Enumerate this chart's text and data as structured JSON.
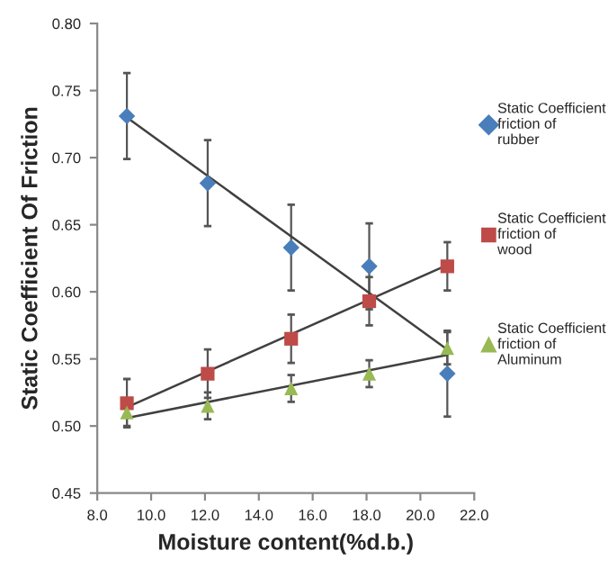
{
  "chart_data": {
    "type": "scatter",
    "xlabel": "Moisture content(%d.b.)",
    "ylabel": "Static Coefficient Of Friction",
    "xlim": [
      8.0,
      22.0
    ],
    "ylim": [
      0.45,
      0.8
    ],
    "xticks": [
      {
        "value": 8,
        "label": "8.0"
      },
      {
        "value": 10,
        "label": "10.0"
      },
      {
        "value": 12,
        "label": "12.0"
      },
      {
        "value": 14,
        "label": "14.0"
      },
      {
        "value": 16,
        "label": "16.0"
      },
      {
        "value": 18,
        "label": "18.0"
      },
      {
        "value": 20,
        "label": "20.0"
      },
      {
        "value": 22,
        "label": "22.0"
      }
    ],
    "yticks": [
      {
        "value": 0.45,
        "label": "0.45"
      },
      {
        "value": 0.5,
        "label": "0.50"
      },
      {
        "value": 0.55,
        "label": "0.55"
      },
      {
        "value": 0.6,
        "label": "0.60"
      },
      {
        "value": 0.65,
        "label": "0.65"
      },
      {
        "value": 0.7,
        "label": "0.70"
      },
      {
        "value": 0.75,
        "label": "0.75"
      },
      {
        "value": 0.8,
        "label": "0.80"
      }
    ],
    "grid": false,
    "legend": "right",
    "series": [
      {
        "type": "line",
        "color": "#404040",
        "marker": "none",
        "x": [
          9.1,
          21.0
        ],
        "values": [
          0.73,
          0.557
        ]
      },
      {
        "type": "line",
        "color": "#404040",
        "marker": "none",
        "x": [
          9.1,
          21.0
        ],
        "values": [
          0.514,
          0.62
        ]
      },
      {
        "type": "line",
        "color": "#404040",
        "marker": "none",
        "x": [
          9.1,
          21.0
        ],
        "values": [
          0.506,
          0.553
        ]
      },
      {
        "name": "Static Coefficient\nfriction of\nrubber",
        "color": "#4a7ebb",
        "marker": "diamond",
        "x": [
          9.1,
          12.1,
          15.2,
          18.1,
          21.0
        ],
        "values": [
          0.731,
          0.681,
          0.633,
          0.619,
          0.539
        ],
        "errors": [
          0.032,
          0.032,
          0.032,
          0.032,
          0.032
        ]
      },
      {
        "name": "Static Coefficient\nfriction of\nwood",
        "color": "#be4b48",
        "marker": "square",
        "x": [
          9.1,
          12.1,
          15.2,
          18.1,
          21.0
        ],
        "values": [
          0.517,
          0.539,
          0.565,
          0.593,
          0.619
        ],
        "errors": [
          0.018,
          0.018,
          0.018,
          0.018,
          0.018
        ]
      },
      {
        "name": "Static Coefficient\nfriction of\nAluminum",
        "color": "#98b954",
        "marker": "triangle",
        "x": [
          9.1,
          12.1,
          15.2,
          18.1,
          21.0
        ],
        "values": [
          0.51,
          0.515,
          0.528,
          0.539,
          0.558
        ],
        "errors": [
          0.01,
          0.01,
          0.01,
          0.01,
          0.012
        ]
      }
    ]
  }
}
